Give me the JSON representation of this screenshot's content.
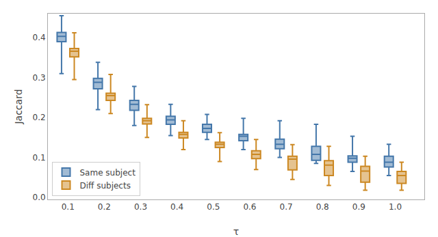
{
  "chart_data": {
    "type": "box",
    "x": [
      0.1,
      0.2,
      0.3,
      0.4,
      0.5,
      0.6,
      0.7,
      0.8,
      0.9,
      1.0
    ],
    "series": [
      {
        "name": "Same subject",
        "color": "#4477AA",
        "whislo": [
          0.31,
          0.22,
          0.18,
          0.155,
          0.145,
          0.12,
          0.1,
          0.085,
          0.065,
          0.055
        ],
        "q1": [
          0.39,
          0.272,
          0.218,
          0.183,
          0.163,
          0.142,
          0.122,
          0.093,
          0.088,
          0.076
        ],
        "med": [
          0.403,
          0.288,
          0.233,
          0.194,
          0.173,
          0.153,
          0.133,
          0.108,
          0.098,
          0.088
        ],
        "q3": [
          0.413,
          0.298,
          0.243,
          0.203,
          0.183,
          0.158,
          0.146,
          0.128,
          0.104,
          0.103
        ],
        "whishi": [
          0.455,
          0.338,
          0.278,
          0.233,
          0.208,
          0.198,
          0.192,
          0.183,
          0.153,
          0.133
        ]
      },
      {
        "name": "Diff subjects",
        "color": "#CC8822",
        "whislo": [
          0.295,
          0.21,
          0.15,
          0.12,
          0.09,
          0.07,
          0.045,
          0.03,
          0.018,
          0.018
        ],
        "q1": [
          0.352,
          0.243,
          0.184,
          0.149,
          0.125,
          0.097,
          0.069,
          0.055,
          0.038,
          0.035
        ],
        "med": [
          0.366,
          0.255,
          0.192,
          0.158,
          0.133,
          0.108,
          0.096,
          0.081,
          0.066,
          0.055
        ],
        "q3": [
          0.373,
          0.261,
          0.198,
          0.163,
          0.138,
          0.117,
          0.103,
          0.092,
          0.078,
          0.065
        ],
        "whishi": [
          0.412,
          0.308,
          0.232,
          0.192,
          0.162,
          0.145,
          0.132,
          0.128,
          0.103,
          0.088
        ]
      }
    ],
    "xlabel": "τ",
    "ylabel": "Jaccard",
    "xlim": [
      0.045,
      1.08
    ],
    "ylim": [
      -0.005,
      0.46
    ],
    "xticks": [
      0.1,
      0.2,
      0.3,
      0.4,
      0.5,
      0.6,
      0.7,
      0.8,
      0.9,
      {
        "value": 1.0,
        "label": "1.0"
      }
    ],
    "yticks": [
      {
        "value": 0,
        "label": "0.0"
      },
      0.1,
      0.2,
      0.3,
      0.4
    ],
    "legend": "lower left",
    "grid": false
  }
}
